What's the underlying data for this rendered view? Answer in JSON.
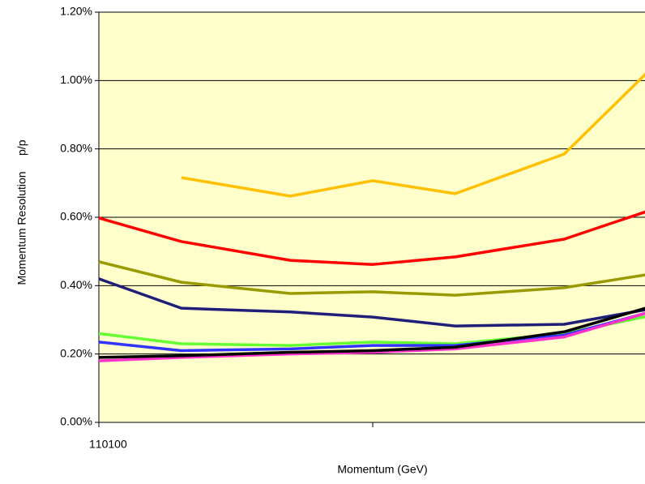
{
  "chart_data": {
    "type": "line",
    "x_label": "Momentum (GeV)",
    "y_label": "Momentum Resolution     p/p",
    "x": [
      1,
      2,
      5,
      10,
      20,
      50,
      100
    ],
    "xlim": [
      1,
      100
    ],
    "xticks": [
      1,
      10,
      100
    ],
    "xscale": "log",
    "ylim": [
      0,
      1.2
    ],
    "yticks": [
      {
        "value": 0,
        "label": "0.00%"
      },
      {
        "value": 0.2,
        "label": "0.20%"
      },
      {
        "value": 0.4,
        "label": "0.40%"
      },
      {
        "value": 0.6,
        "label": "0.60%"
      },
      {
        "value": 0.8,
        "label": "0.80%"
      },
      {
        "value": 1.0,
        "label": "1.00%"
      },
      {
        "value": 1.2,
        "label": "1.20%"
      }
    ],
    "grid": true,
    "series": [
      {
        "color": "#ffc000",
        "values": [
          null,
          0.716,
          0.662,
          0.707,
          0.669,
          0.785,
          1.022
        ]
      },
      {
        "color": "#ff0000",
        "values": [
          0.598,
          0.529,
          0.474,
          0.462,
          0.484,
          0.536,
          0.617
        ]
      },
      {
        "color": "#999900",
        "values": [
          0.47,
          0.41,
          0.377,
          0.382,
          0.372,
          0.394,
          0.432
        ]
      },
      {
        "color": "#1f1f7a",
        "values": [
          0.42,
          0.334,
          0.323,
          0.308,
          0.282,
          0.287,
          0.33
        ]
      },
      {
        "color": "#66ff33",
        "values": [
          0.26,
          0.23,
          0.225,
          0.235,
          0.23,
          0.26,
          0.31
        ]
      },
      {
        "color": "#3333ff",
        "values": [
          0.235,
          0.21,
          0.215,
          0.225,
          0.225,
          0.255,
          0.32
        ]
      },
      {
        "color": "#ff33cc",
        "values": [
          0.18,
          0.19,
          0.2,
          0.205,
          0.215,
          0.25,
          0.32
        ]
      },
      {
        "color": "#000000",
        "values": [
          0.19,
          0.195,
          0.205,
          0.21,
          0.22,
          0.265,
          0.335
        ]
      }
    ]
  }
}
